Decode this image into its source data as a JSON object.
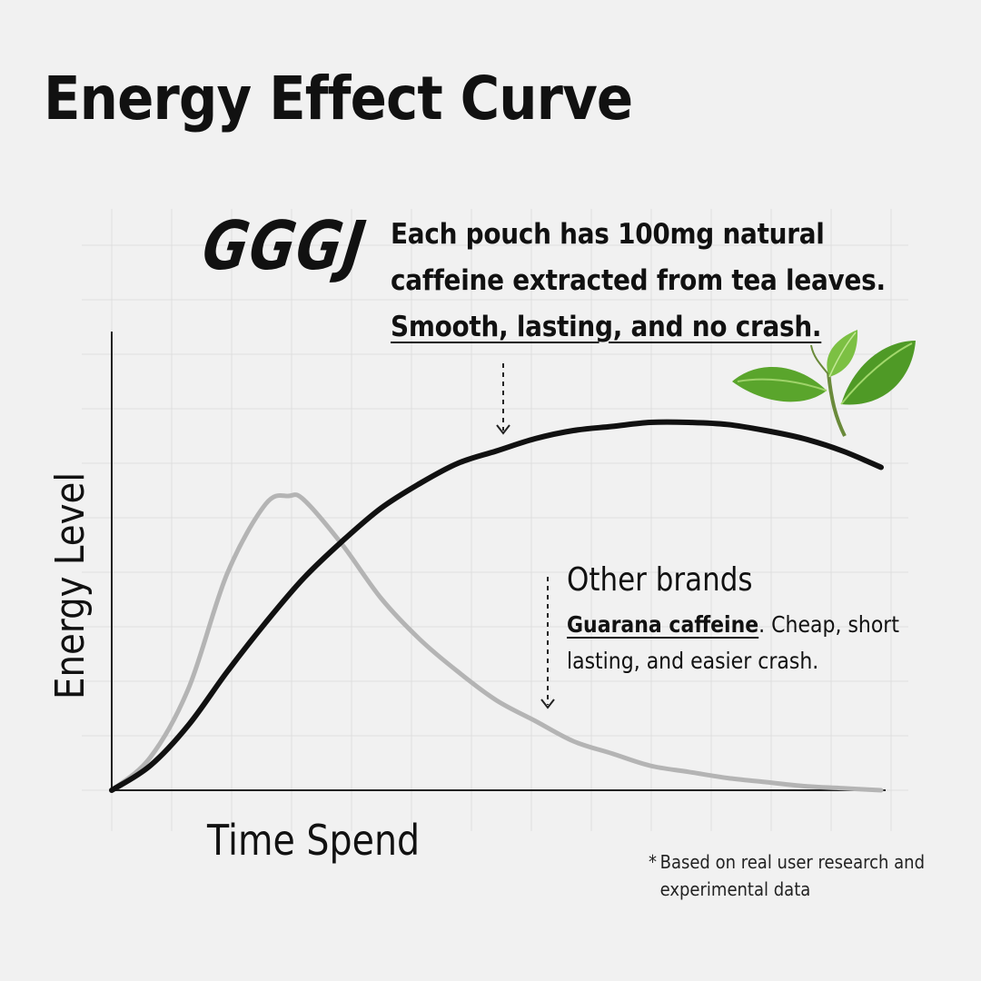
{
  "title": "Energy Effect Curve",
  "logo_text": "GGGJ",
  "callout_main": {
    "line1": "Each pouch has 100mg natural",
    "line2": "caffeine extracted from tea leaves.",
    "line3": "Smooth, lasting, and no crash."
  },
  "callout_other": {
    "title": "Other brands",
    "highlight": "Guarana caffeine",
    "desc_rest": ". Cheap, short",
    "desc_line2": "lasting, and easier crash."
  },
  "footnote": {
    "star": "*",
    "line1": "Based on real user research and",
    "line2": "experimental data"
  },
  "colors": {
    "background": "#f1f1f1",
    "gggj_curve": "#111111",
    "other_curve": "#b4b4b4",
    "grid": "#dedede",
    "leaf": "#5fae2e"
  },
  "chart_data": {
    "type": "line",
    "xlabel": "Time Spend",
    "ylabel": "Energy Level",
    "xlim": [
      0,
      10
    ],
    "ylim": [
      0,
      10
    ],
    "grid": true,
    "series": [
      {
        "name": "GGGJ",
        "x": [
          0,
          0.5,
          1,
          1.5,
          2,
          2.5,
          3,
          3.5,
          4,
          4.5,
          5,
          5.5,
          6,
          6.5,
          7,
          7.5,
          8,
          8.5,
          9,
          9.5,
          10
        ],
        "y": [
          0,
          0.6,
          1.6,
          2.9,
          4.1,
          5.2,
          6.1,
          6.9,
          7.5,
          8.0,
          8.3,
          8.6,
          8.8,
          8.9,
          9.0,
          9.0,
          8.95,
          8.8,
          8.6,
          8.3,
          7.9
        ]
      },
      {
        "name": "Other brands",
        "x": [
          0,
          0.5,
          1,
          1.5,
          2,
          2.3,
          2.5,
          3,
          3.5,
          4,
          4.5,
          5,
          5.5,
          6,
          6.5,
          7,
          7.5,
          8,
          8.5,
          9,
          9.5,
          10
        ],
        "y": [
          0,
          0.8,
          2.5,
          5.3,
          7.0,
          7.2,
          7.1,
          6.0,
          4.7,
          3.7,
          2.9,
          2.2,
          1.7,
          1.2,
          0.9,
          0.6,
          0.45,
          0.3,
          0.2,
          0.1,
          0.05,
          0.0
        ]
      }
    ]
  }
}
